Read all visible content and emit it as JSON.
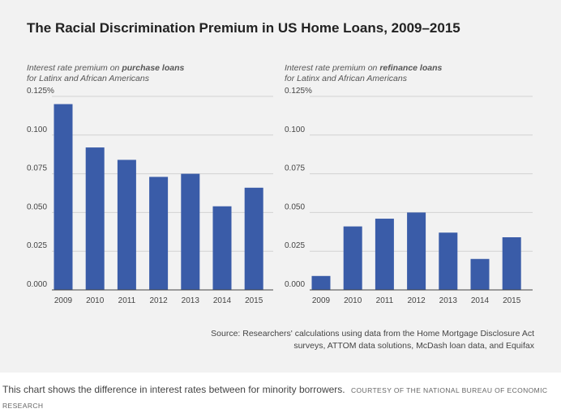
{
  "figure": {
    "title": "The Racial Discrimination Premium in US Home Loans, 2009–2015",
    "source": "Source: Researchers' calculations using data from the Home Mortgage Disclosure Act surveys, ATTOM data solutions, McDash loan data, and Equifax"
  },
  "caption": {
    "text": "This chart shows the difference in interest rates between for minority borrowers.",
    "credit": "COURTESY OF THE NATIONAL BUREAU OF ECONOMIC RESEARCH"
  },
  "colors": {
    "bar": "#3a5ca8",
    "grid": "#d2d2d2",
    "baseline": "#444444",
    "panel_background": "#f2f2f2"
  },
  "chart_data": [
    {
      "type": "bar",
      "subtitle_pre": "Interest rate premium on ",
      "subtitle_emphasis": "purchase loans",
      "subtitle_line2": "for Latinx and African Americans",
      "categories": [
        "2009",
        "2010",
        "2011",
        "2012",
        "2013",
        "2014",
        "2015"
      ],
      "values": [
        0.12,
        0.092,
        0.084,
        0.073,
        0.075,
        0.054,
        0.066
      ],
      "ylim": [
        0,
        0.125
      ],
      "yticks": [
        0,
        0.025,
        0.05,
        0.075,
        0.1,
        0.125
      ],
      "ytick_labels": [
        "0.000",
        "0.025",
        "0.050",
        "0.075",
        "0.100",
        "0.125%"
      ],
      "grid": true
    },
    {
      "type": "bar",
      "subtitle_pre": "Interest rate premium on ",
      "subtitle_emphasis": "refinance loans",
      "subtitle_line2": "for Latinx and African Americans",
      "categories": [
        "2009",
        "2010",
        "2011",
        "2012",
        "2013",
        "2014",
        "2015"
      ],
      "values": [
        0.009,
        0.041,
        0.046,
        0.05,
        0.037,
        0.02,
        0.034
      ],
      "ylim": [
        0,
        0.125
      ],
      "yticks": [
        0,
        0.025,
        0.05,
        0.075,
        0.1,
        0.125
      ],
      "ytick_labels": [
        "0.000",
        "0.025",
        "0.050",
        "0.075",
        "0.100",
        "0.125%"
      ],
      "grid": true
    }
  ]
}
